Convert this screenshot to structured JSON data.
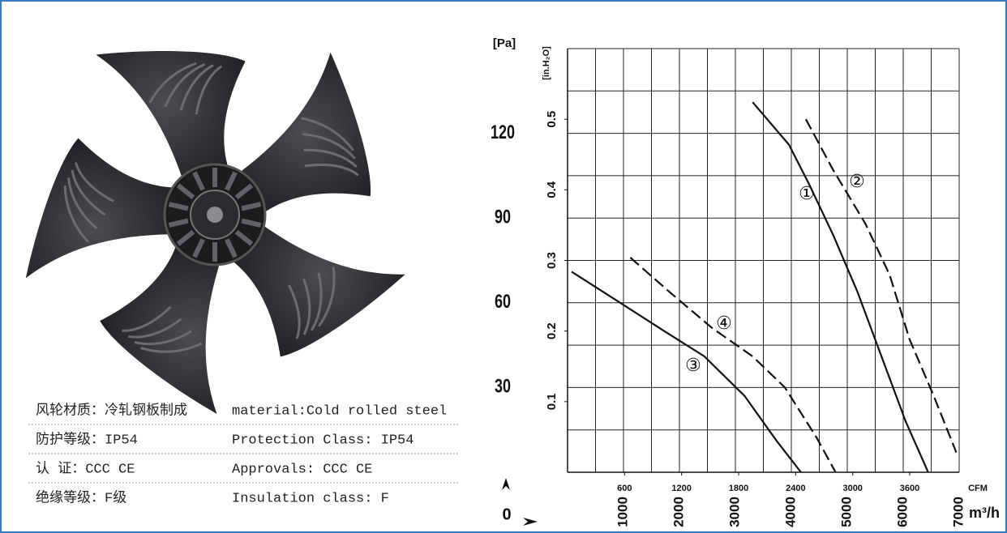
{
  "specs": {
    "rows": [
      [
        "风轮材质：冷轧钢板制成",
        "material:Cold rolled steel"
      ],
      [
        "防护等级：IP54",
        "Protection Class: IP54"
      ],
      [
        "认    证：CCC CE",
        "Approvals: CCC  CE"
      ],
      [
        "绝缘等级：F级",
        "Insulation class: F"
      ]
    ]
  },
  "chart_data": {
    "type": "line",
    "y_label": "[Pa]",
    "y2_label": "[in.H₂O]",
    "x_label": "m³/h",
    "x2_label": "CFM",
    "origin_label": "0",
    "xlim": [
      0,
      7000
    ],
    "xticks": [
      1000,
      2000,
      3000,
      4000,
      5000,
      6000,
      7000
    ],
    "x2lim": [
      0,
      4120
    ],
    "x2ticks": [
      600,
      1200,
      1800,
      2400,
      3000,
      3600
    ],
    "ylim": [
      0,
      150
    ],
    "yticks": [
      30,
      60,
      90,
      120
    ],
    "y2lim": [
      0,
      0.6
    ],
    "y2ticks": [
      0.1,
      0.2,
      0.3,
      0.4,
      0.5
    ],
    "grid": true,
    "xgrid_step": 500,
    "ygrid_step": 15,
    "series": [
      {
        "name": "①",
        "color": "#111111",
        "dashed": false,
        "x": [
          3309,
          3957,
          4317,
          4748,
          5180,
          5612,
          6043,
          6446
        ],
        "values": [
          131,
          116,
          102,
          84,
          64,
          41,
          18,
          0
        ]
      },
      {
        "name": "②",
        "color": "#111111",
        "dashed": true,
        "x": [
          4259,
          4748,
          5324,
          5755,
          6115,
          6547,
          6950
        ],
        "values": [
          125,
          107,
          88,
          70,
          47,
          27,
          7
        ]
      },
      {
        "name": "③",
        "color": "#111111",
        "dashed": false,
        "x": [
          72,
          863,
          1727,
          2446,
          3165,
          3741,
          4173
        ],
        "values": [
          71,
          61,
          50,
          41,
          27,
          11,
          0
        ]
      },
      {
        "name": "④",
        "color": "#111111",
        "dashed": true,
        "x": [
          1122,
          1871,
          2590,
          3309,
          3885,
          4460,
          4791
        ],
        "values": [
          76,
          63,
          51,
          41,
          30,
          12,
          0
        ]
      }
    ]
  }
}
